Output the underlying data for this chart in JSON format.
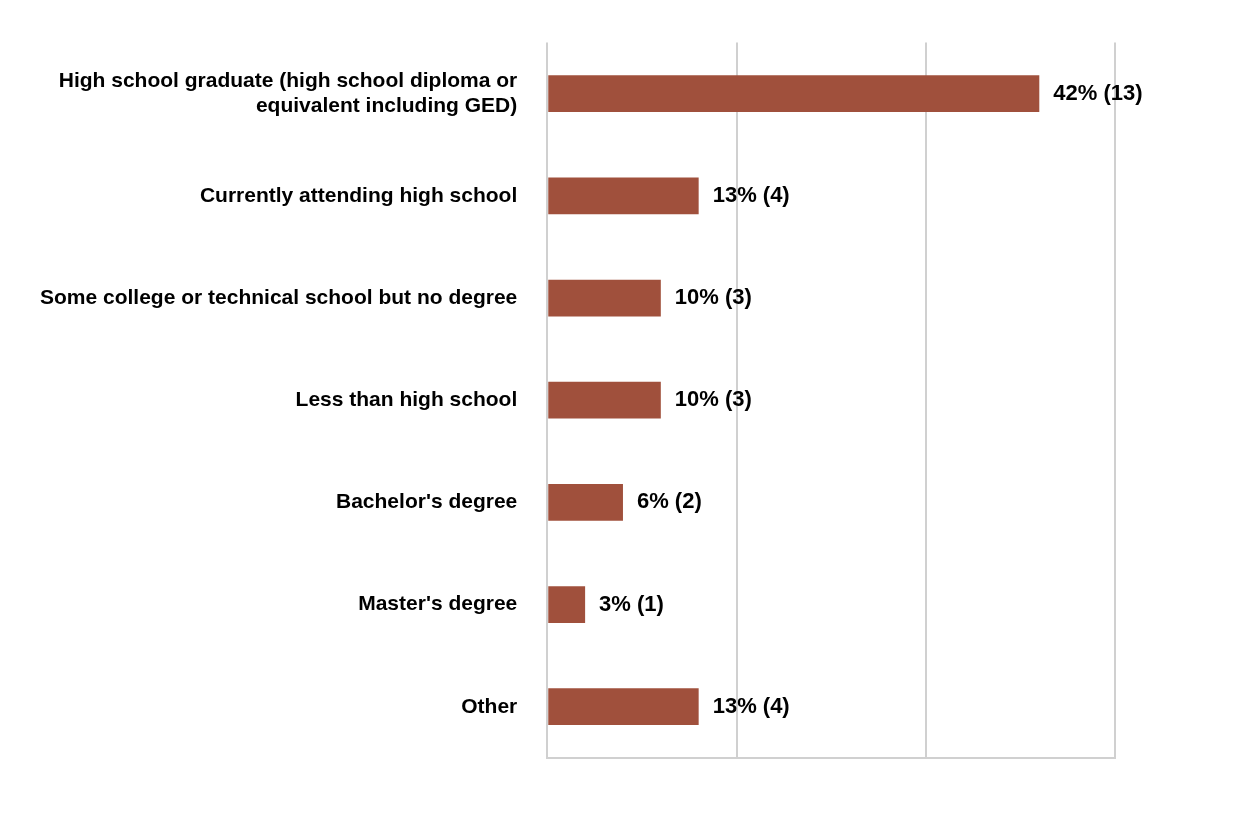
{
  "chart_data": {
    "type": "bar",
    "orientation": "horizontal",
    "categories": [
      "High school graduate (high school diploma or equivalent including GED)",
      "Currently attending high school",
      "Some college or technical school but no degree",
      "Less than high school",
      "Bachelor's degree",
      "Master's degree",
      "Other"
    ],
    "values": [
      13,
      4,
      3,
      3,
      2,
      1,
      4
    ],
    "value_labels": [
      "42% (13)",
      "13% (4)",
      "10% (3)",
      "10% (3)",
      "6% (2)",
      "3% (1)",
      "13% (4)"
    ],
    "color": "#a0503c",
    "xlim": [
      0,
      15
    ],
    "xticks": [
      {
        "value": 0,
        "label": null
      },
      {
        "value": 5,
        "label": null
      },
      {
        "value": 10,
        "label": null
      },
      {
        "value": 15,
        "label": null
      }
    ],
    "tick_labels": "y",
    "grid": "x",
    "legend": false
  }
}
